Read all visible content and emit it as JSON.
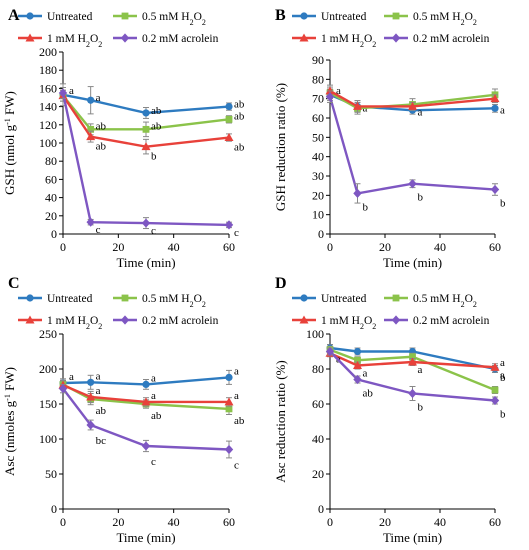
{
  "chart_data": [
    {
      "panel": "A",
      "type": "line",
      "xlabel": "Time (min)",
      "ylabel": "GSH (nmol g⁻¹ FW)",
      "xlim": [
        0,
        60
      ],
      "ylim": [
        0,
        200
      ],
      "xticks": [
        "0",
        "20",
        "40",
        "60"
      ],
      "yticks": [
        "0",
        "20",
        "40",
        "60",
        "80",
        "100",
        "120",
        "140",
        "160",
        "180",
        "200"
      ],
      "x": [
        0,
        10,
        30,
        60
      ],
      "series": [
        {
          "name": "Untreated",
          "color": "#2e7bc0",
          "marker": "circle",
          "values": [
            153,
            147,
            133,
            140
          ],
          "err": [
            12,
            15,
            6,
            4
          ],
          "labels": [
            "a",
            "a",
            "ab",
            "ab"
          ]
        },
        {
          "name": "0.5 mM H₂O₂",
          "color": "#8bc34a",
          "marker": "square",
          "values": [
            152,
            115,
            115,
            126
          ],
          "err": [
            6,
            6,
            8,
            4
          ],
          "labels": [
            "",
            "ab",
            "ab",
            "ab"
          ]
        },
        {
          "name": "1 mM H₂O₂",
          "color": "#e8413a",
          "marker": "triangle",
          "values": [
            152,
            107,
            96,
            106
          ],
          "err": [
            6,
            6,
            8,
            4
          ],
          "labels": [
            "",
            "ab",
            "b",
            "ab"
          ]
        },
        {
          "name": "0.2 mM acrolein",
          "color": "#7e57c2",
          "marker": "diamond",
          "values": [
            155,
            13,
            12,
            10
          ],
          "err": [
            6,
            3,
            6,
            3
          ],
          "labels": [
            "",
            "c",
            "c",
            "c"
          ]
        }
      ]
    },
    {
      "panel": "B",
      "type": "line",
      "xlabel": "Time (min)",
      "ylabel": "GSH reduction ratio (%)",
      "xlim": [
        0,
        60
      ],
      "ylim": [
        0,
        90
      ],
      "xticks": [
        "0",
        "20",
        "40",
        "60"
      ],
      "yticks": [
        "0",
        "10",
        "20",
        "30",
        "40",
        "50",
        "60",
        "70",
        "80",
        "90"
      ],
      "x": [
        0,
        10,
        30,
        60
      ],
      "series": [
        {
          "name": "Untreated",
          "color": "#2e7bc0",
          "marker": "circle",
          "values": [
            72,
            66,
            64,
            65
          ],
          "err": [
            3,
            3,
            2,
            2
          ],
          "labels": [
            "a",
            "a",
            "a",
            "a"
          ]
        },
        {
          "name": "0.5 mM H₂O₂",
          "color": "#8bc34a",
          "marker": "square",
          "values": [
            73,
            65,
            67,
            72
          ],
          "err": [
            3,
            3,
            3,
            3
          ],
          "labels": [
            "",
            "",
            "",
            ""
          ]
        },
        {
          "name": "1 mM H₂O₂",
          "color": "#e8413a",
          "marker": "triangle",
          "values": [
            74,
            66,
            66,
            70
          ],
          "err": [
            3,
            3,
            2,
            2
          ],
          "labels": [
            "",
            "",
            "",
            ""
          ]
        },
        {
          "name": "0.2 mM acrolein",
          "color": "#7e57c2",
          "marker": "diamond",
          "values": [
            71,
            21,
            26,
            23
          ],
          "err": [
            3,
            5,
            2,
            3
          ],
          "labels": [
            "",
            "b",
            "b",
            "b"
          ]
        }
      ]
    },
    {
      "panel": "C",
      "type": "line",
      "xlabel": "Time (min)",
      "ylabel": "Asc (nmoles g⁻¹ FW)",
      "xlim": [
        0,
        60
      ],
      "ylim": [
        0,
        250
      ],
      "xticks": [
        "0",
        "20",
        "40",
        "60"
      ],
      "yticks": [
        "0",
        "50",
        "100",
        "150",
        "200",
        "250"
      ],
      "x": [
        0,
        10,
        30,
        60
      ],
      "series": [
        {
          "name": "Untreated",
          "color": "#2e7bc0",
          "marker": "circle",
          "values": [
            180,
            181,
            178,
            188
          ],
          "err": [
            6,
            10,
            7,
            10
          ],
          "labels": [
            "a",
            "a",
            "a",
            "a"
          ]
        },
        {
          "name": "0.5 mM H₂O₂",
          "color": "#8bc34a",
          "marker": "square",
          "values": [
            178,
            157,
            150,
            143
          ],
          "err": [
            6,
            8,
            6,
            8
          ],
          "labels": [
            "",
            "ab",
            "ab",
            "ab"
          ]
        },
        {
          "name": "1 mM H₂O₂",
          "color": "#e8413a",
          "marker": "triangle",
          "values": [
            177,
            160,
            153,
            153
          ],
          "err": [
            6,
            8,
            6,
            6
          ],
          "labels": [
            "",
            "a",
            "a",
            "a"
          ]
        },
        {
          "name": "0.2 mM acrolein",
          "color": "#7e57c2",
          "marker": "diamond",
          "values": [
            172,
            120,
            90,
            85
          ],
          "err": [
            6,
            7,
            8,
            12
          ],
          "labels": [
            "",
            "bc",
            "c",
            "c"
          ]
        }
      ]
    },
    {
      "panel": "D",
      "type": "line",
      "xlabel": "Time (min)",
      "ylabel": "Asc reduction ratio (%)",
      "xlim": [
        0,
        60
      ],
      "ylim": [
        0,
        100
      ],
      "xticks": [
        "0",
        "20",
        "40",
        "60"
      ],
      "yticks": [
        "0",
        "20",
        "40",
        "60",
        "80",
        "100"
      ],
      "x": [
        0,
        10,
        30,
        60
      ],
      "series": [
        {
          "name": "Untreated",
          "color": "#2e7bc0",
          "marker": "circle",
          "values": [
            92,
            90,
            90,
            80
          ],
          "err": [
            2,
            2,
            2,
            2
          ],
          "labels": [
            "",
            "",
            "",
            "a"
          ]
        },
        {
          "name": "0.5 mM H₂O₂",
          "color": "#8bc34a",
          "marker": "square",
          "values": [
            91,
            85,
            87,
            68
          ],
          "err": [
            2,
            2,
            2,
            2
          ],
          "labels": [
            "",
            "",
            "",
            "b"
          ]
        },
        {
          "name": "1 mM H₂O₂",
          "color": "#e8413a",
          "marker": "triangle",
          "values": [
            89,
            82,
            84,
            81
          ],
          "err": [
            2,
            2,
            2,
            2
          ],
          "labels": [
            "a",
            "a",
            "a",
            "a"
          ]
        },
        {
          "name": "0.2 mM acrolein",
          "color": "#7e57c2",
          "marker": "diamond",
          "values": [
            90,
            74,
            66,
            62
          ],
          "err": [
            2,
            2,
            4,
            2
          ],
          "labels": [
            "",
            "ab",
            "b",
            "b"
          ]
        }
      ]
    }
  ]
}
